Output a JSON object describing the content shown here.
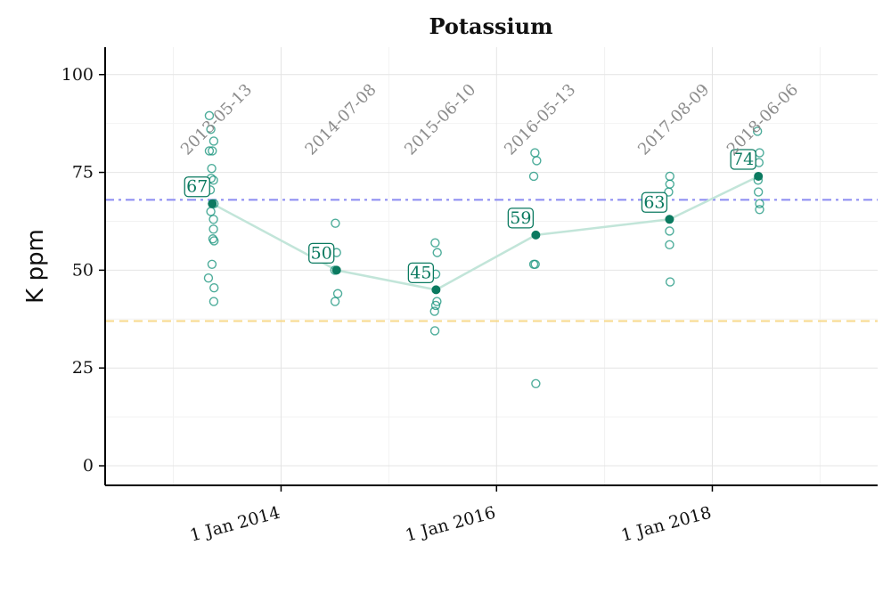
{
  "chart_data": {
    "type": "scatter",
    "title": "Potassium",
    "xlabel": "",
    "ylabel": "K ppm",
    "ylim": [
      -5,
      107
    ],
    "xlim": [
      "2012-05-15",
      "2019-07-15"
    ],
    "y_ticks": [
      0,
      25,
      50,
      75,
      100
    ],
    "y_tick_labels": [
      "0",
      "25",
      "50",
      "75",
      "100"
    ],
    "x_ticks": [
      "2014-01-01",
      "2016-01-01",
      "2018-01-01"
    ],
    "x_tick_labels": [
      "1 Jan 2014",
      "1 Jan 2016",
      "1 Jan 2018"
    ],
    "x_minor_ticks": [
      "2013-01-01",
      "2015-01-01",
      "2017-01-01",
      "2019-01-01"
    ],
    "grid": true,
    "reference_lines": [
      {
        "name": "upper-reference",
        "y": 68,
        "color": "#8a8af2",
        "style": "dash-dot"
      },
      {
        "name": "lower-reference",
        "y": 37,
        "color": "#f7d98b",
        "style": "dashed"
      }
    ],
    "colors": {
      "point": "#13917a",
      "point_fill": "#ffffff",
      "mean": "#0b7a60",
      "mean_line": "#c2e5d9",
      "label_text": "#0b7a60",
      "label_border": "#0b7a60",
      "date_label": "#8c8c8c"
    },
    "samplings": [
      {
        "date_label": "2013-05-13",
        "mean": 67,
        "mean_label": "67",
        "mean_x": "2013-05-13",
        "points": [
          {
            "x": "2013-05-03",
            "y": 89.5
          },
          {
            "x": "2013-05-08",
            "y": 86
          },
          {
            "x": "2013-05-18",
            "y": 83
          },
          {
            "x": "2013-05-03",
            "y": 80.5
          },
          {
            "x": "2013-05-13",
            "y": 80.5
          },
          {
            "x": "2013-05-11",
            "y": 76
          },
          {
            "x": "2013-05-09",
            "y": 73.5
          },
          {
            "x": "2013-05-17",
            "y": 73
          },
          {
            "x": "2013-05-06",
            "y": 70.5
          },
          {
            "x": "2013-05-19",
            "y": 67
          },
          {
            "x": "2013-05-08",
            "y": 65
          },
          {
            "x": "2013-05-17",
            "y": 63
          },
          {
            "x": "2013-05-17",
            "y": 60.5
          },
          {
            "x": "2013-05-15",
            "y": 58
          },
          {
            "x": "2013-05-19",
            "y": 57.5
          },
          {
            "x": "2013-05-12",
            "y": 51.5
          },
          {
            "x": "2013-04-30",
            "y": 48
          },
          {
            "x": "2013-05-19",
            "y": 45.5
          },
          {
            "x": "2013-05-18",
            "y": 42
          }
        ]
      },
      {
        "date_label": "2014-07-08",
        "mean": 50,
        "mean_label": "50",
        "mean_x": "2014-07-08",
        "points": [
          {
            "x": "2014-07-04",
            "y": 62
          },
          {
            "x": "2014-07-08",
            "y": 54.5
          },
          {
            "x": "2014-07-02",
            "y": 50
          },
          {
            "x": "2014-07-12",
            "y": 44
          },
          {
            "x": "2014-07-03",
            "y": 42
          }
        ]
      },
      {
        "date_label": "2015-06-10",
        "mean": 45,
        "mean_label": "45",
        "mean_x": "2015-06-10",
        "points": [
          {
            "x": "2015-06-07",
            "y": 57
          },
          {
            "x": "2015-06-14",
            "y": 54.5
          },
          {
            "x": "2015-06-09",
            "y": 49
          },
          {
            "x": "2015-06-13",
            "y": 42
          },
          {
            "x": "2015-06-09",
            "y": 41
          },
          {
            "x": "2015-06-05",
            "y": 39.5
          },
          {
            "x": "2015-06-06",
            "y": 34.5
          }
        ]
      },
      {
        "date_label": "2016-05-13",
        "mean": 59,
        "mean_label": "59",
        "mean_x": "2016-05-13",
        "points": [
          {
            "x": "2016-05-10",
            "y": 80
          },
          {
            "x": "2016-05-16",
            "y": 78
          },
          {
            "x": "2016-05-06",
            "y": 74
          },
          {
            "x": "2016-05-06",
            "y": 51.5
          },
          {
            "x": "2016-05-11",
            "y": 51.5
          },
          {
            "x": "2016-05-13",
            "y": 21
          }
        ]
      },
      {
        "date_label": "2017-08-09",
        "mean": 63,
        "mean_label": "63",
        "mean_x": "2017-08-09",
        "points": [
          {
            "x": "2017-08-10",
            "y": 74
          },
          {
            "x": "2017-08-10",
            "y": 72
          },
          {
            "x": "2017-08-06",
            "y": 70
          },
          {
            "x": "2017-08-09",
            "y": 60
          },
          {
            "x": "2017-08-09",
            "y": 56.5
          },
          {
            "x": "2017-08-11",
            "y": 47
          }
        ]
      },
      {
        "date_label": "2018-06-06",
        "mean": 74,
        "mean_label": "74",
        "mean_x": "2018-06-06",
        "points": [
          {
            "x": "2018-06-03",
            "y": 85.5
          },
          {
            "x": "2018-06-10",
            "y": 80
          },
          {
            "x": "2018-06-08",
            "y": 77.5
          },
          {
            "x": "2018-06-05",
            "y": 73
          },
          {
            "x": "2018-06-06",
            "y": 70
          },
          {
            "x": "2018-06-10",
            "y": 67
          },
          {
            "x": "2018-06-10",
            "y": 65.5
          }
        ]
      }
    ]
  }
}
